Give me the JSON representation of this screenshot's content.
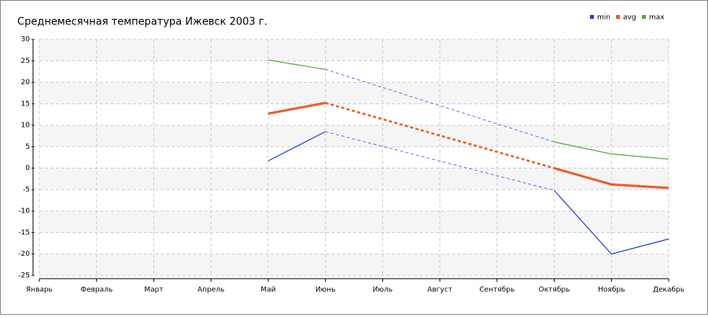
{
  "chart_data": {
    "type": "line",
    "title": "Среднемесячная температура Ижевск  2003 г.",
    "categories": [
      "Январь",
      "Февраль",
      "Март",
      "Апрель",
      "Май",
      "Июнь",
      "Июль",
      "Август",
      "Сентябрь",
      "Октябрь",
      "Ноябрь",
      "Декабрь"
    ],
    "series": [
      {
        "name": "min",
        "color": "#1f3fd6",
        "values": [
          null,
          null,
          null,
          null,
          1.7,
          8.5,
          null,
          null,
          null,
          -5.2,
          -20.0,
          -16.5
        ]
      },
      {
        "name": "avg",
        "color": "#e8602c",
        "values": [
          null,
          null,
          null,
          null,
          12.7,
          15.2,
          null,
          null,
          null,
          0.0,
          -3.8,
          -4.6
        ]
      },
      {
        "name": "max",
        "color": "#5aa832",
        "values": [
          null,
          null,
          null,
          null,
          25.2,
          23.0,
          null,
          null,
          null,
          6.1,
          3.3,
          2.1
        ]
      }
    ],
    "ylim": [
      -25,
      30
    ],
    "yticks": [
      -25,
      -20,
      -15,
      -10,
      -5,
      0,
      5,
      10,
      15,
      20,
      25,
      30
    ],
    "grid": true,
    "legend": "top-right"
  }
}
